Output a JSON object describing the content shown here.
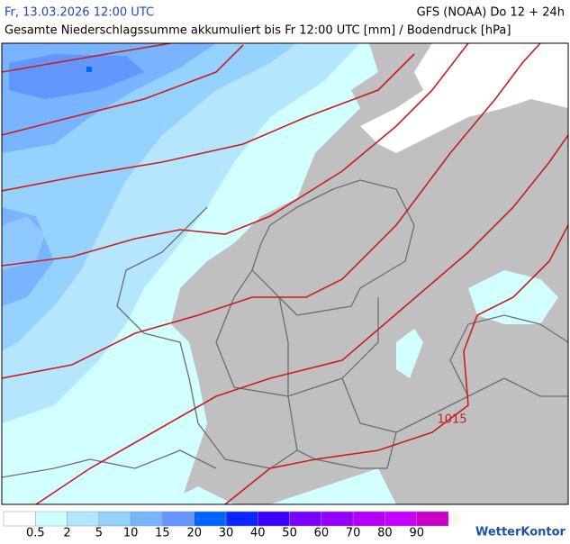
{
  "header": {
    "title": "Fr, 13.03.2026 12:00 UTC",
    "model": "GFS (NOAA) Do 12 + 24h",
    "subtitle": "Gesamte Niederschlagssumme akkumuliert bis Fr 12:00 UTC [mm] / Bodendruck [hPa]"
  },
  "map": {
    "isobar_label": "1015"
  },
  "legend": {
    "colors": [
      "#ffffff",
      "#d2ffff",
      "#b4e6ff",
      "#96d2ff",
      "#78b4ff",
      "#6496ff",
      "#0064ff",
      "#0a28ff",
      "#3c00ff",
      "#7800ff",
      "#9600ff",
      "#b400ff",
      "#c800ff",
      "#c800c8"
    ],
    "ticks": [
      {
        "value": 0.5,
        "label": "0.5"
      },
      2,
      5,
      10,
      15,
      20,
      30,
      40,
      50,
      60,
      70,
      80,
      90
    ]
  },
  "logo": "WetterKontor"
}
